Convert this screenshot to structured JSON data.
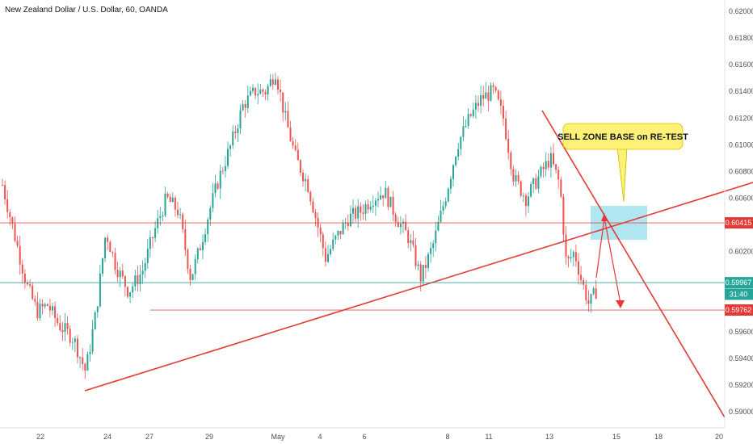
{
  "chart_data": {
    "type": "candlestick",
    "title": "New Zealand Dollar / U.S. Dollar, 60, OANDA",
    "ylim": [
      0.5886,
      0.621
    ],
    "y_ticks": [
      "0.62000",
      "0.61800",
      "0.61600",
      "0.61400",
      "0.61200",
      "0.61000",
      "0.60800",
      "0.60600",
      "0.60200",
      "0.59600",
      "0.59400",
      "0.59200",
      "0.59000"
    ],
    "x_ticks": [
      "22",
      "24",
      "27",
      "29",
      "May",
      "4",
      "6",
      "8",
      "11",
      "13",
      "15",
      "18",
      "20"
    ],
    "price_tags": [
      {
        "label": "0.60415",
        "value": 0.60415,
        "color": "#e53935"
      },
      {
        "label": "0.59967",
        "value": 0.59967,
        "color": "#26a69a"
      },
      {
        "label": "31:40",
        "value": 0.5988,
        "color": "#26a69a"
      },
      {
        "label": "0.59762",
        "value": 0.59762,
        "color": "#e53935"
      }
    ],
    "horizontal_lines": [
      {
        "value": 0.60415,
        "color": "#e53935"
      },
      {
        "value": 0.59967,
        "color": "#26a69a"
      },
      {
        "value": 0.59762,
        "color": "#e53935"
      }
    ],
    "callout": {
      "text": "SELL ZONE BASE on RE-TEST",
      "color": "#fff176"
    },
    "colors": {
      "up": "#26a69a",
      "down": "#ef5350",
      "drawing": "#e53935",
      "zone": "#a6e3ee"
    }
  }
}
